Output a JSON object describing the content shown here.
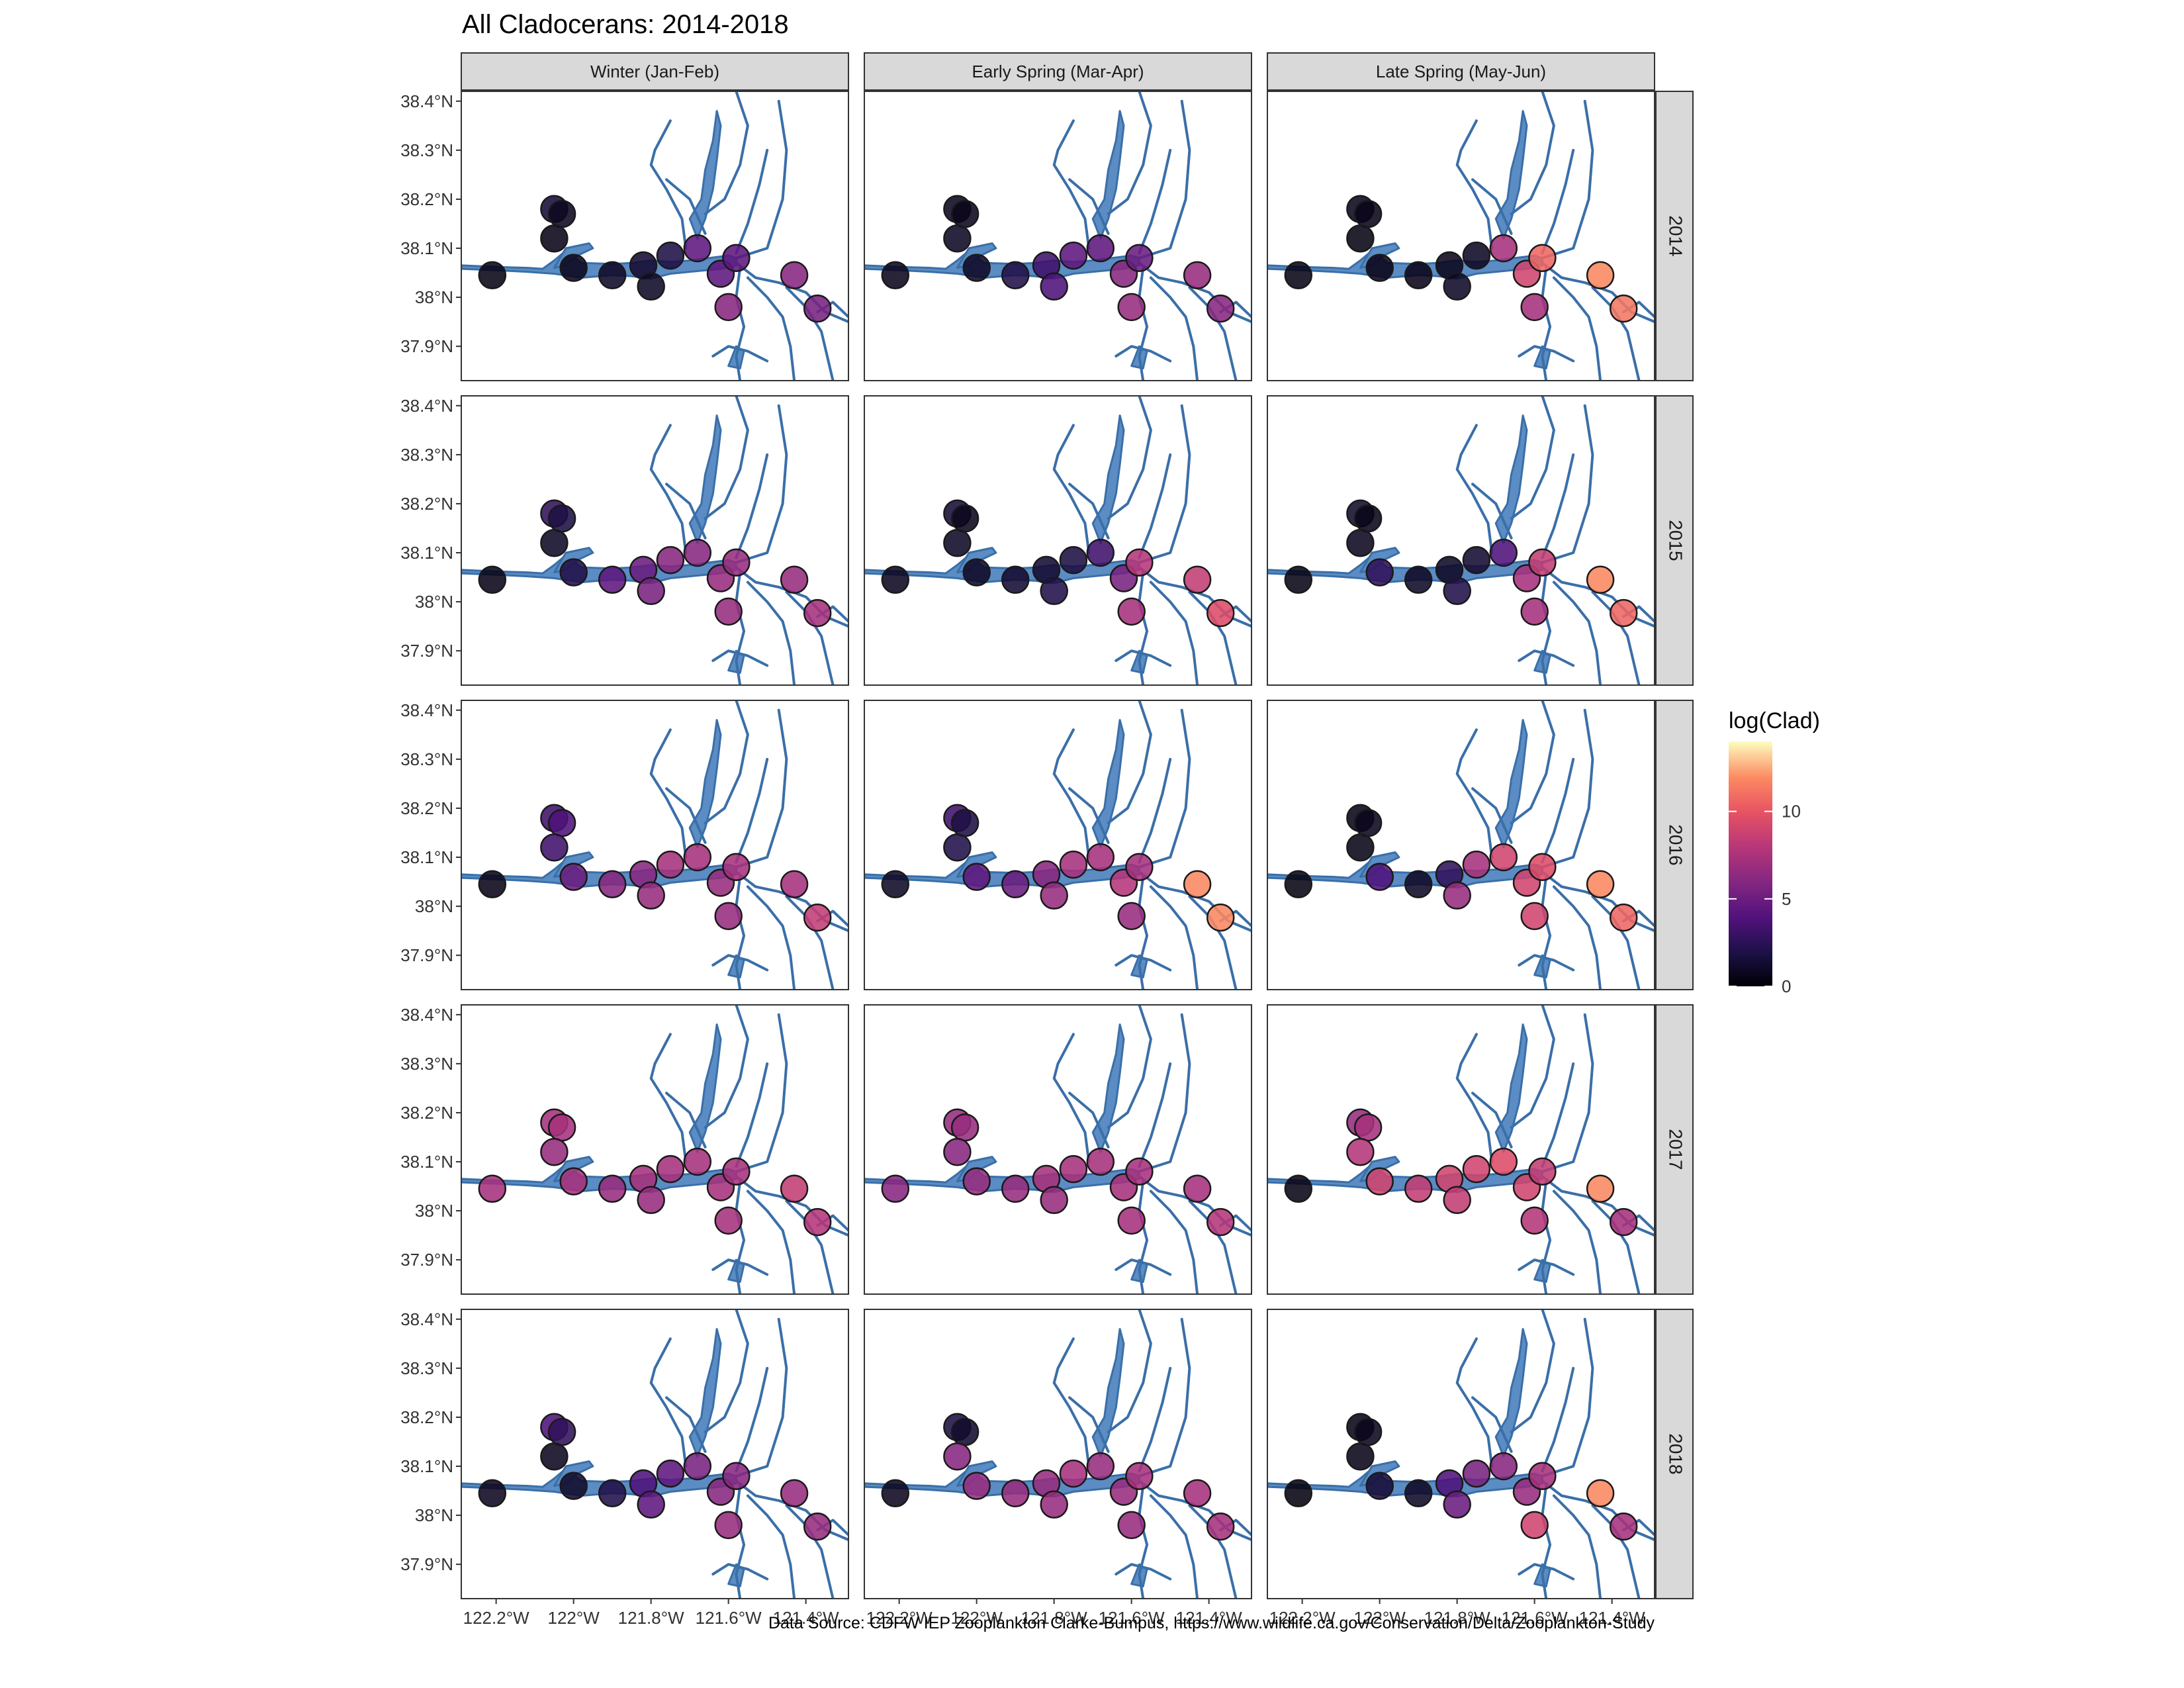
{
  "title": "All Cladocerans: 2014-2018",
  "caption": "Data Source: CDFW IEP Zooplankton Clarke-Bumpus, https://www.wildlife.ca.gov/Conservation/Delta/Zooplankton-Study",
  "columns": [
    "Winter (Jan-Feb)",
    "Early Spring (Mar-Apr)",
    "Late Spring (May-Jun)"
  ],
  "rows": [
    "2014",
    "2015",
    "2016",
    "2017",
    "2018"
  ],
  "lat_ticks": [
    {
      "value": 38.4,
      "label": "38.4°N"
    },
    {
      "value": 38.3,
      "label": "38.3°N"
    },
    {
      "value": 38.2,
      "label": "38.2°N"
    },
    {
      "value": 38.1,
      "label": "38.1°N"
    },
    {
      "value": 38.0,
      "label": "38°N"
    },
    {
      "value": 37.9,
      "label": "37.9°N"
    }
  ],
  "lon_ticks": [
    {
      "value": -122.2,
      "label": "122.2°W"
    },
    {
      "value": -122.0,
      "label": "122°W"
    },
    {
      "value": -121.8,
      "label": "121.8°W"
    },
    {
      "value": -121.6,
      "label": "121.6°W"
    },
    {
      "value": -121.4,
      "label": "121.4°W"
    }
  ],
  "xlim": [
    -122.29,
    -121.29
  ],
  "ylim": [
    37.83,
    38.42
  ],
  "colors": {
    "water_fill": "#5b8cc4",
    "water_line": "#3a6fa8",
    "strip_fill": "#d9d9d9",
    "panel_border": "#333333",
    "point_border": "#1a1a1a"
  },
  "legend": {
    "title": "log(Clad)",
    "range": [
      0,
      14
    ],
    "ticks": [
      0,
      5,
      10
    ],
    "palette": "magma"
  },
  "chart_data": {
    "type": "scatter",
    "x": "longitude",
    "y": "latitude",
    "stations": [
      {
        "lon": -122.21,
        "lat": 38.045
      },
      {
        "lon": -122.05,
        "lat": 38.18
      },
      {
        "lon": -122.03,
        "lat": 38.17
      },
      {
        "lon": -122.05,
        "lat": 38.12
      },
      {
        "lon": -122.0,
        "lat": 38.06
      },
      {
        "lon": -121.9,
        "lat": 38.045
      },
      {
        "lon": -121.82,
        "lat": 38.065
      },
      {
        "lon": -121.8,
        "lat": 38.022
      },
      {
        "lon": -121.75,
        "lat": 38.085
      },
      {
        "lon": -121.68,
        "lat": 38.1
      },
      {
        "lon": -121.62,
        "lat": 38.048
      },
      {
        "lon": -121.58,
        "lat": 38.08
      },
      {
        "lon": -121.6,
        "lat": 37.98
      },
      {
        "lon": -121.43,
        "lat": 38.045
      },
      {
        "lon": -121.37,
        "lat": 37.977
      }
    ],
    "values_by_row_column": [
      [
        [
          0.5,
          1.5,
          0.8,
          0.6,
          0.7,
          1.0,
          1.3,
          1.0,
          1.9,
          4.0,
          4.0,
          4.0,
          5.5,
          5.5,
          5.0
        ],
        [
          0.7,
          0.8,
          0.7,
          0.9,
          1.0,
          2.0,
          3.0,
          3.5,
          4.0,
          4.0,
          5.5,
          4.5,
          6.0,
          6.0,
          5.5
        ],
        [
          0.5,
          0.7,
          0.6,
          0.4,
          0.6,
          0.6,
          0.7,
          1.0,
          0.9,
          6.5,
          8.0,
          9.5,
          6.5,
          10.5,
          10.0
        ]
      ],
      [
        [
          0.6,
          2.5,
          1.8,
          1.0,
          2.0,
          4.0,
          4.5,
          5.0,
          5.5,
          5.5,
          6.0,
          6.0,
          6.0,
          6.0,
          6.5
        ],
        [
          0.8,
          1.5,
          0.7,
          1.0,
          1.0,
          1.3,
          1.3,
          2.0,
          1.8,
          3.0,
          5.0,
          7.0,
          6.5,
          7.5,
          8.5
        ],
        [
          0.5,
          1.2,
          0.6,
          0.8,
          2.5,
          1.0,
          1.0,
          2.0,
          1.3,
          3.5,
          6.5,
          7.5,
          6.5,
          10.5,
          9.5
        ]
      ],
      [
        [
          0.6,
          3.0,
          3.5,
          3.0,
          4.5,
          5.5,
          5.5,
          6.0,
          6.5,
          6.5,
          6.0,
          6.5,
          6.0,
          6.5,
          7.5
        ],
        [
          1.0,
          3.0,
          1.8,
          2.0,
          4.0,
          4.5,
          5.5,
          6.0,
          6.5,
          6.5,
          7.0,
          6.5,
          6.0,
          10.5,
          10.5
        ],
        [
          0.4,
          0.6,
          0.7,
          0.5,
          3.5,
          1.0,
          2.5,
          6.0,
          6.5,
          8.0,
          8.0,
          8.5,
          8.0,
          10.5,
          9.5
        ]
      ],
      [
        [
          6.5,
          6.5,
          6.5,
          6.0,
          6.5,
          6.0,
          6.5,
          6.0,
          6.5,
          6.5,
          6.5,
          6.5,
          6.5,
          7.5,
          7.0
        ],
        [
          5.5,
          6.0,
          6.0,
          5.5,
          6.0,
          6.0,
          6.5,
          6.0,
          6.5,
          6.5,
          6.5,
          6.5,
          6.5,
          6.5,
          7.0
        ],
        [
          0.5,
          6.0,
          6.5,
          7.0,
          8.0,
          7.5,
          8.0,
          7.5,
          8.0,
          8.5,
          8.0,
          7.5,
          7.0,
          10.5,
          6.5
        ]
      ],
      [
        [
          0.8,
          3.5,
          2.5,
          0.8,
          1.2,
          2.0,
          3.5,
          4.0,
          4.0,
          5.0,
          5.5,
          5.5,
          6.0,
          6.0,
          6.0
        ],
        [
          0.8,
          1.8,
          1.2,
          5.5,
          6.0,
          6.0,
          6.0,
          6.0,
          6.5,
          6.0,
          6.0,
          6.5,
          6.0,
          6.5,
          6.5
        ],
        [
          0.3,
          0.6,
          0.7,
          0.6,
          1.5,
          1.0,
          3.5,
          4.5,
          5.0,
          5.5,
          6.0,
          6.5,
          8.0,
          10.5,
          6.5
        ]
      ]
    ]
  }
}
